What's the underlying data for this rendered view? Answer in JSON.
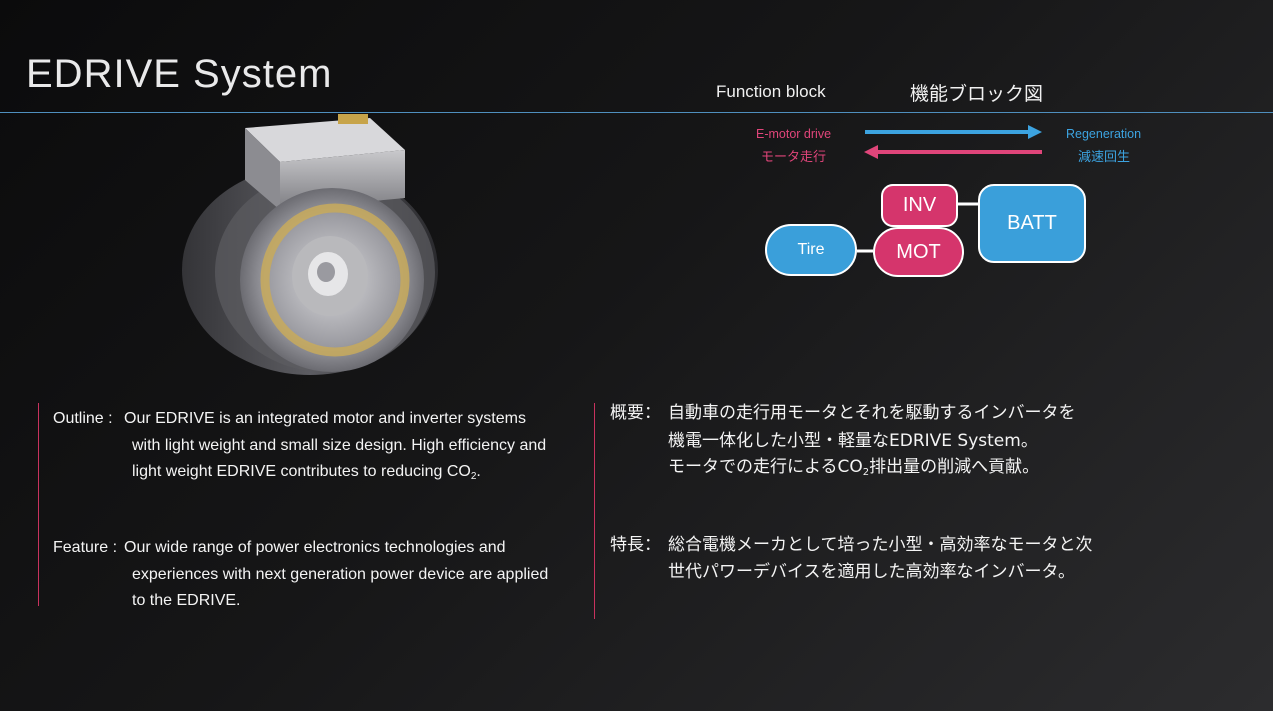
{
  "slide": {
    "title": "EDRIVE System"
  },
  "function_block": {
    "label_en": "Function block",
    "label_jp": "機能ブロック図",
    "emotor_en": "E-motor drive",
    "emotor_jp": "モータ走行",
    "regen_en": "Regeneration",
    "regen_jp": "減速回生",
    "nodes": {
      "inv": "INV",
      "mot": "MOT",
      "batt": "BATT",
      "tire": "Tire"
    },
    "colors": {
      "motor": "#d5356c",
      "battery": "#3a9fda",
      "arrow_regen": "#3ca3e0",
      "arrow_drive": "#e0457a"
    }
  },
  "outline": {
    "label": "Outline :",
    "line1": "Our EDRIVE  is an integrated motor and inverter systems",
    "line2": "with light weight and small size design. High efficiency and",
    "line3_pre": "light weight EDRIVE contributes to reducing CO",
    "line3_sub": "2",
    "line3_post": "."
  },
  "feature": {
    "label": "Feature :",
    "line1": "Our wide range of power electronics technologies and",
    "line2": "experiences with next generation power device are applied",
    "line3": "to the EDRIVE."
  },
  "gaiyo": {
    "label": "概要：",
    "line1": "自動車の走行用モータとそれを駆動するインバータを",
    "line2": "機電一体化した小型・軽量なEDRIVE System。",
    "line3_pre": "モータでの走行によるCO",
    "line3_sub": "2",
    "line3_post": "排出量の削減へ貢献。"
  },
  "tokucho": {
    "label": "特長：",
    "line1": "総合電機メーカとして培った小型・高効率なモータと次",
    "line2": "世代パワーデバイスを適用した高効率なインバータ。"
  }
}
